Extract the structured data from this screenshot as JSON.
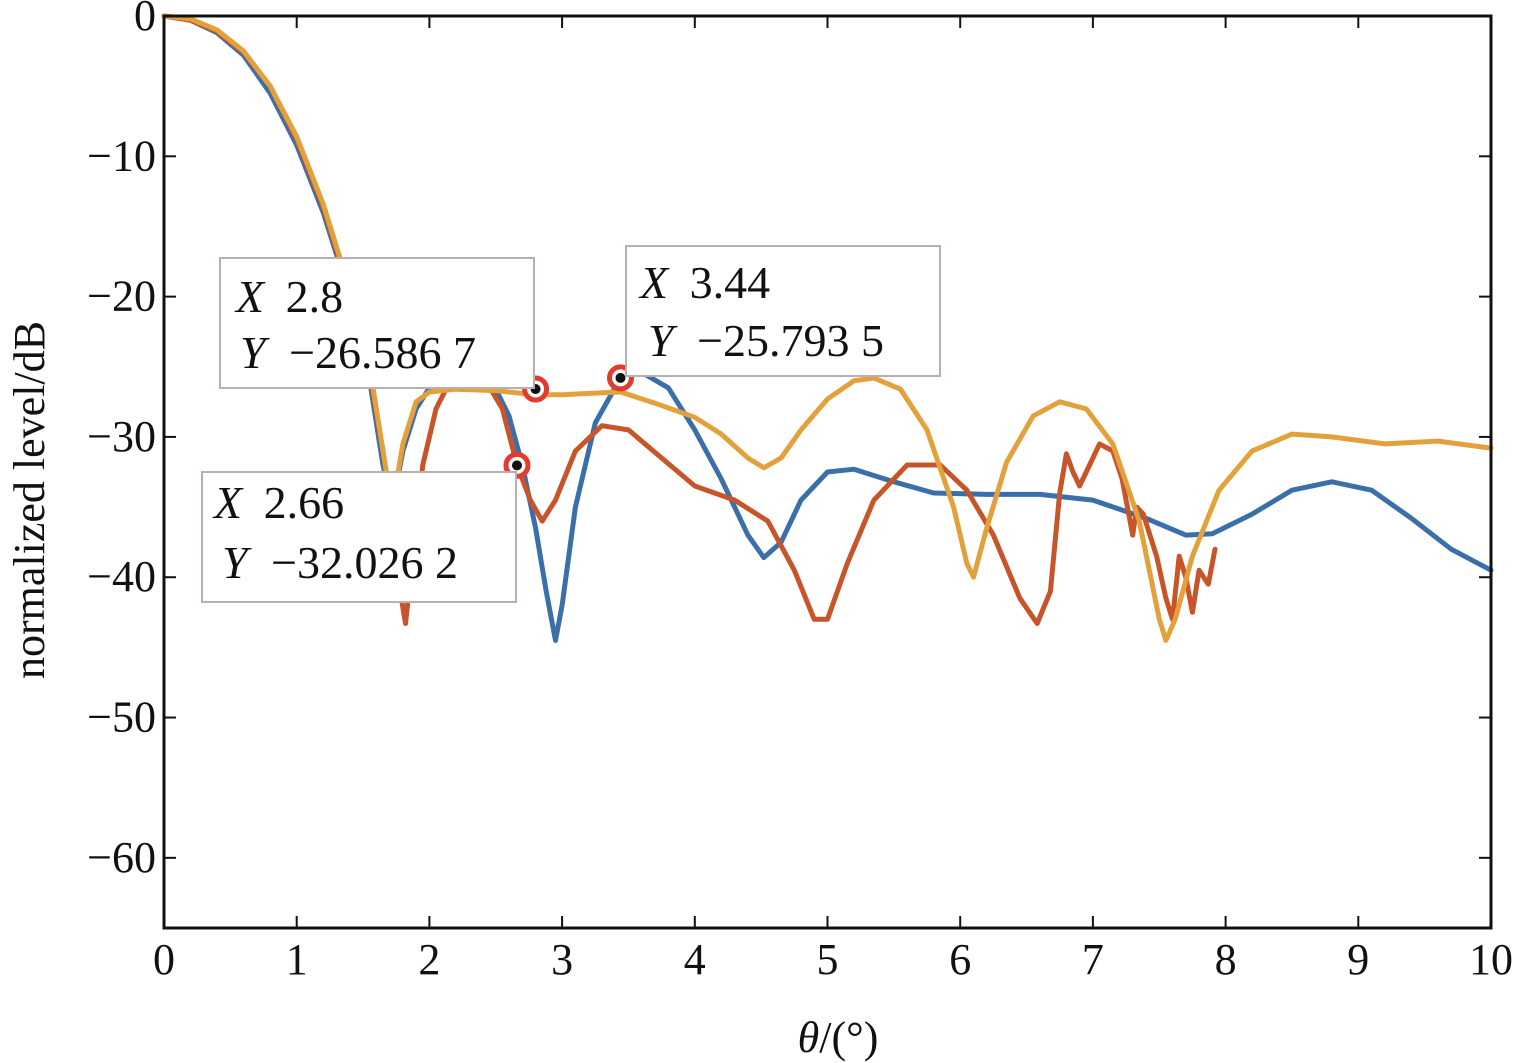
{
  "chart_data": {
    "type": "line",
    "title": "",
    "xlabel_prefix": "θ",
    "xlabel_suffix": "/(°)",
    "ylabel": "normalized level/dB",
    "xlim": [
      0,
      10
    ],
    "ylim": [
      -65,
      0
    ],
    "xticks": [
      0,
      1,
      2,
      3,
      4,
      5,
      6,
      7,
      8,
      9,
      10
    ],
    "yticks": [
      0,
      -10,
      -20,
      -30,
      -40,
      -50,
      -60
    ],
    "ytick_labels": [
      "0",
      "−10",
      "−20",
      "−30",
      "−40",
      "−50",
      "−60"
    ],
    "grid": false,
    "legend": "none",
    "series": [
      {
        "color": "#3a6faa",
        "points": [
          [
            0,
            0
          ],
          [
            0.2,
            -0.3
          ],
          [
            0.4,
            -1.2
          ],
          [
            0.6,
            -2.8
          ],
          [
            0.8,
            -5.5
          ],
          [
            1.0,
            -9.2
          ],
          [
            1.2,
            -14
          ],
          [
            1.4,
            -20
          ],
          [
            1.55,
            -26
          ],
          [
            1.65,
            -32
          ],
          [
            1.72,
            -35
          ],
          [
            1.8,
            -31
          ],
          [
            1.9,
            -28
          ],
          [
            2.0,
            -26.5
          ],
          [
            2.1,
            -25.8
          ],
          [
            2.2,
            -25.6
          ],
          [
            2.35,
            -25.9
          ],
          [
            2.5,
            -26.6
          ],
          [
            2.6,
            -28.5
          ],
          [
            2.7,
            -32
          ],
          [
            2.8,
            -36.5
          ],
          [
            2.88,
            -41
          ],
          [
            2.95,
            -44.5
          ],
          [
            3.0,
            -42
          ],
          [
            3.1,
            -35
          ],
          [
            3.25,
            -29
          ],
          [
            3.44,
            -25.8
          ],
          [
            3.6,
            -25.4
          ],
          [
            3.8,
            -26.5
          ],
          [
            4.0,
            -29.5
          ],
          [
            4.2,
            -33
          ],
          [
            4.4,
            -37
          ],
          [
            4.52,
            -38.6
          ],
          [
            4.65,
            -37.5
          ],
          [
            4.8,
            -34.5
          ],
          [
            5.0,
            -32.5
          ],
          [
            5.2,
            -32.3
          ],
          [
            5.5,
            -33.2
          ],
          [
            5.8,
            -34
          ],
          [
            6.2,
            -34.1
          ],
          [
            6.6,
            -34.1
          ],
          [
            7.0,
            -34.5
          ],
          [
            7.4,
            -35.8
          ],
          [
            7.7,
            -37
          ],
          [
            7.9,
            -36.9
          ],
          [
            8.2,
            -35.5
          ],
          [
            8.5,
            -33.8
          ],
          [
            8.8,
            -33.2
          ],
          [
            9.1,
            -33.8
          ],
          [
            9.4,
            -35.8
          ],
          [
            9.7,
            -38
          ],
          [
            10.0,
            -39.5
          ]
        ]
      },
      {
        "color": "#c8552a",
        "points": [
          [
            0,
            0
          ],
          [
            0.2,
            -0.3
          ],
          [
            0.4,
            -1.1
          ],
          [
            0.6,
            -2.6
          ],
          [
            0.8,
            -5
          ],
          [
            1.0,
            -8.8
          ],
          [
            1.2,
            -13.6
          ],
          [
            1.4,
            -19.8
          ],
          [
            1.55,
            -25.5
          ],
          [
            1.65,
            -31
          ],
          [
            1.72,
            -36
          ],
          [
            1.78,
            -41
          ],
          [
            1.82,
            -43.3
          ],
          [
            1.87,
            -39
          ],
          [
            1.95,
            -32
          ],
          [
            2.05,
            -28
          ],
          [
            2.2,
            -25.2
          ],
          [
            2.4,
            -25.6
          ],
          [
            2.55,
            -28
          ],
          [
            2.66,
            -32
          ],
          [
            2.76,
            -34.5
          ],
          [
            2.85,
            -36
          ],
          [
            2.95,
            -34.5
          ],
          [
            3.1,
            -31
          ],
          [
            3.3,
            -29.2
          ],
          [
            3.5,
            -29.5
          ],
          [
            3.75,
            -31.5
          ],
          [
            4.0,
            -33.5
          ],
          [
            4.3,
            -34.5
          ],
          [
            4.55,
            -36
          ],
          [
            4.75,
            -39.5
          ],
          [
            4.9,
            -43
          ],
          [
            5.0,
            -43
          ],
          [
            5.15,
            -39
          ],
          [
            5.35,
            -34.5
          ],
          [
            5.6,
            -32
          ],
          [
            5.85,
            -32
          ],
          [
            6.05,
            -33.8
          ],
          [
            6.25,
            -37
          ],
          [
            6.45,
            -41.5
          ],
          [
            6.58,
            -43.3
          ],
          [
            6.68,
            -41
          ],
          [
            6.75,
            -34
          ],
          [
            6.8,
            -31.2
          ],
          [
            6.85,
            -32.5
          ],
          [
            6.9,
            -33.5
          ],
          [
            7.0,
            -31.5
          ],
          [
            7.05,
            -30.5
          ],
          [
            7.15,
            -31
          ],
          [
            7.22,
            -33
          ],
          [
            7.3,
            -37
          ],
          [
            7.33,
            -35
          ],
          [
            7.38,
            -35.5
          ],
          [
            7.48,
            -38.5
          ],
          [
            7.55,
            -41.5
          ],
          [
            7.6,
            -43
          ],
          [
            7.65,
            -38.5
          ],
          [
            7.7,
            -40
          ],
          [
            7.75,
            -42.5
          ],
          [
            7.8,
            -39.5
          ],
          [
            7.87,
            -40.5
          ],
          [
            7.92,
            -38
          ]
        ]
      },
      {
        "color": "#e3a13c",
        "points": [
          [
            0,
            0
          ],
          [
            0.2,
            -0.2
          ],
          [
            0.4,
            -1
          ],
          [
            0.6,
            -2.5
          ],
          [
            0.8,
            -5
          ],
          [
            1.0,
            -8.6
          ],
          [
            1.2,
            -13.4
          ],
          [
            1.4,
            -19.5
          ],
          [
            1.55,
            -25
          ],
          [
            1.65,
            -31
          ],
          [
            1.72,
            -35
          ],
          [
            1.8,
            -30.5
          ],
          [
            1.9,
            -27.5
          ],
          [
            2.0,
            -26.8
          ],
          [
            2.2,
            -26.6
          ],
          [
            2.5,
            -26.7
          ],
          [
            2.8,
            -27
          ],
          [
            3.0,
            -27
          ],
          [
            3.2,
            -26.9
          ],
          [
            3.44,
            -26.8
          ],
          [
            3.7,
            -27.6
          ],
          [
            4.0,
            -28.6
          ],
          [
            4.2,
            -29.8
          ],
          [
            4.4,
            -31.5
          ],
          [
            4.52,
            -32.2
          ],
          [
            4.65,
            -31.5
          ],
          [
            4.8,
            -29.5
          ],
          [
            5.0,
            -27.3
          ],
          [
            5.2,
            -26
          ],
          [
            5.35,
            -25.8
          ],
          [
            5.55,
            -26.6
          ],
          [
            5.75,
            -29.5
          ],
          [
            5.95,
            -35
          ],
          [
            6.05,
            -39
          ],
          [
            6.1,
            -40
          ],
          [
            6.2,
            -36.5
          ],
          [
            6.35,
            -31.8
          ],
          [
            6.55,
            -28.5
          ],
          [
            6.75,
            -27.5
          ],
          [
            6.95,
            -28
          ],
          [
            7.15,
            -30.5
          ],
          [
            7.35,
            -36
          ],
          [
            7.5,
            -43
          ],
          [
            7.55,
            -44.5
          ],
          [
            7.62,
            -43
          ],
          [
            7.75,
            -38.5
          ],
          [
            7.95,
            -33.8
          ],
          [
            8.2,
            -31
          ],
          [
            8.5,
            -29.8
          ],
          [
            8.8,
            -30
          ],
          [
            9.2,
            -30.5
          ],
          [
            9.6,
            -30.3
          ],
          [
            10.0,
            -30.8
          ]
        ]
      }
    ],
    "annotations": [
      {
        "x": 2.8,
        "y": -26.5867,
        "x_label": "X",
        "x_value": "2.8",
        "y_label": "Y",
        "y_value": "−26.586 7"
      },
      {
        "x": 3.44,
        "y": -25.7935,
        "x_label": "X",
        "x_value": "3.44",
        "y_label": "Y",
        "y_value": "−25.793 5"
      },
      {
        "x": 2.66,
        "y": -32.0262,
        "x_label": "X",
        "x_value": "2.66",
        "y_label": "Y",
        "y_value": "−32.026 2"
      }
    ]
  }
}
